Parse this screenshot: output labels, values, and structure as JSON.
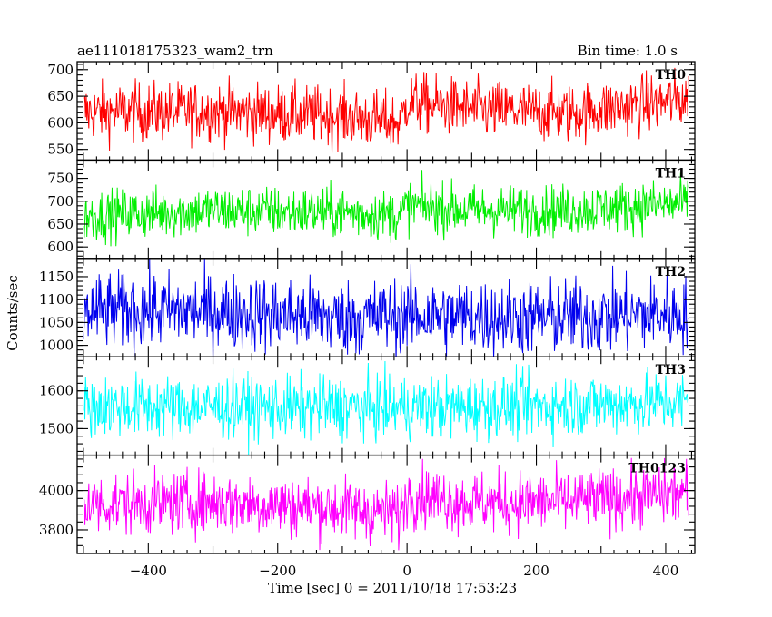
{
  "chart_data": {
    "type": "line",
    "title": "ae111018175323_wam2_trn",
    "bin_time_label": "Bin time: 1.0 s",
    "xlabel": "Time [sec] 0 = 2011/10/18 17:53:23",
    "ylabel": "Counts/sec",
    "xlim": [
      -510,
      445
    ],
    "xticks": [
      -400,
      -200,
      0,
      200,
      400
    ],
    "xtick_labels": [
      "−400",
      "−200",
      "0",
      "200",
      "400"
    ],
    "x_range": [
      -500,
      435
    ],
    "panels": [
      {
        "name": "TH0",
        "color": "#ff0000",
        "ylim": [
          530,
          715
        ],
        "yticks": [
          550,
          600,
          650,
          700
        ],
        "ytick_labels": [
          "550",
          "600",
          "650",
          "700"
        ],
        "trend": [
          [
            -500,
            620
          ],
          [
            -300,
            622
          ],
          [
            -100,
            612
          ],
          [
            -10,
            600
          ],
          [
            0,
            640
          ],
          [
            100,
            625
          ],
          [
            250,
            618
          ],
          [
            435,
            645
          ]
        ],
        "noise": 28
      },
      {
        "name": "TH1",
        "color": "#00ee00",
        "ylim": [
          575,
          790
        ],
        "yticks": [
          600,
          650,
          700,
          750
        ],
        "ytick_labels": [
          "600",
          "650",
          "700",
          "750"
        ],
        "trend": [
          [
            -500,
            668
          ],
          [
            -300,
            680
          ],
          [
            -100,
            675
          ],
          [
            -10,
            668
          ],
          [
            0,
            690
          ],
          [
            100,
            680
          ],
          [
            250,
            680
          ],
          [
            435,
            695
          ]
        ],
        "noise": 28
      },
      {
        "name": "TH2",
        "color": "#0000ee",
        "ylim": [
          975,
          1190
        ],
        "yticks": [
          1000,
          1050,
          1100,
          1150
        ],
        "ytick_labels": [
          "1000",
          "1050",
          "1100",
          "1150"
        ],
        "trend": [
          [
            -500,
            1075
          ],
          [
            -300,
            1075
          ],
          [
            -100,
            1060
          ],
          [
            0,
            1065
          ],
          [
            200,
            1060
          ],
          [
            435,
            1070
          ]
        ],
        "noise": 42
      },
      {
        "name": "TH3",
        "color": "#00ffff",
        "ylim": [
          1430,
          1690
        ],
        "yticks": [
          1500,
          1600
        ],
        "ytick_labels": [
          "1500",
          "1600"
        ],
        "trend": [
          [
            -500,
            1560
          ],
          [
            -200,
            1555
          ],
          [
            0,
            1555
          ],
          [
            200,
            1560
          ],
          [
            435,
            1570
          ]
        ],
        "noise": 42
      },
      {
        "name": "TH0123",
        "color": "#ff00ff",
        "ylim": [
          3680,
          4180
        ],
        "yticks": [
          3800,
          4000
        ],
        "ytick_labels": [
          "3800",
          "4000"
        ],
        "trend": [
          [
            -500,
            3930
          ],
          [
            -300,
            3940
          ],
          [
            -100,
            3910
          ],
          [
            -10,
            3880
          ],
          [
            0,
            3980
          ],
          [
            100,
            3940
          ],
          [
            250,
            3940
          ],
          [
            435,
            3990
          ]
        ],
        "noise": 80
      }
    ]
  }
}
